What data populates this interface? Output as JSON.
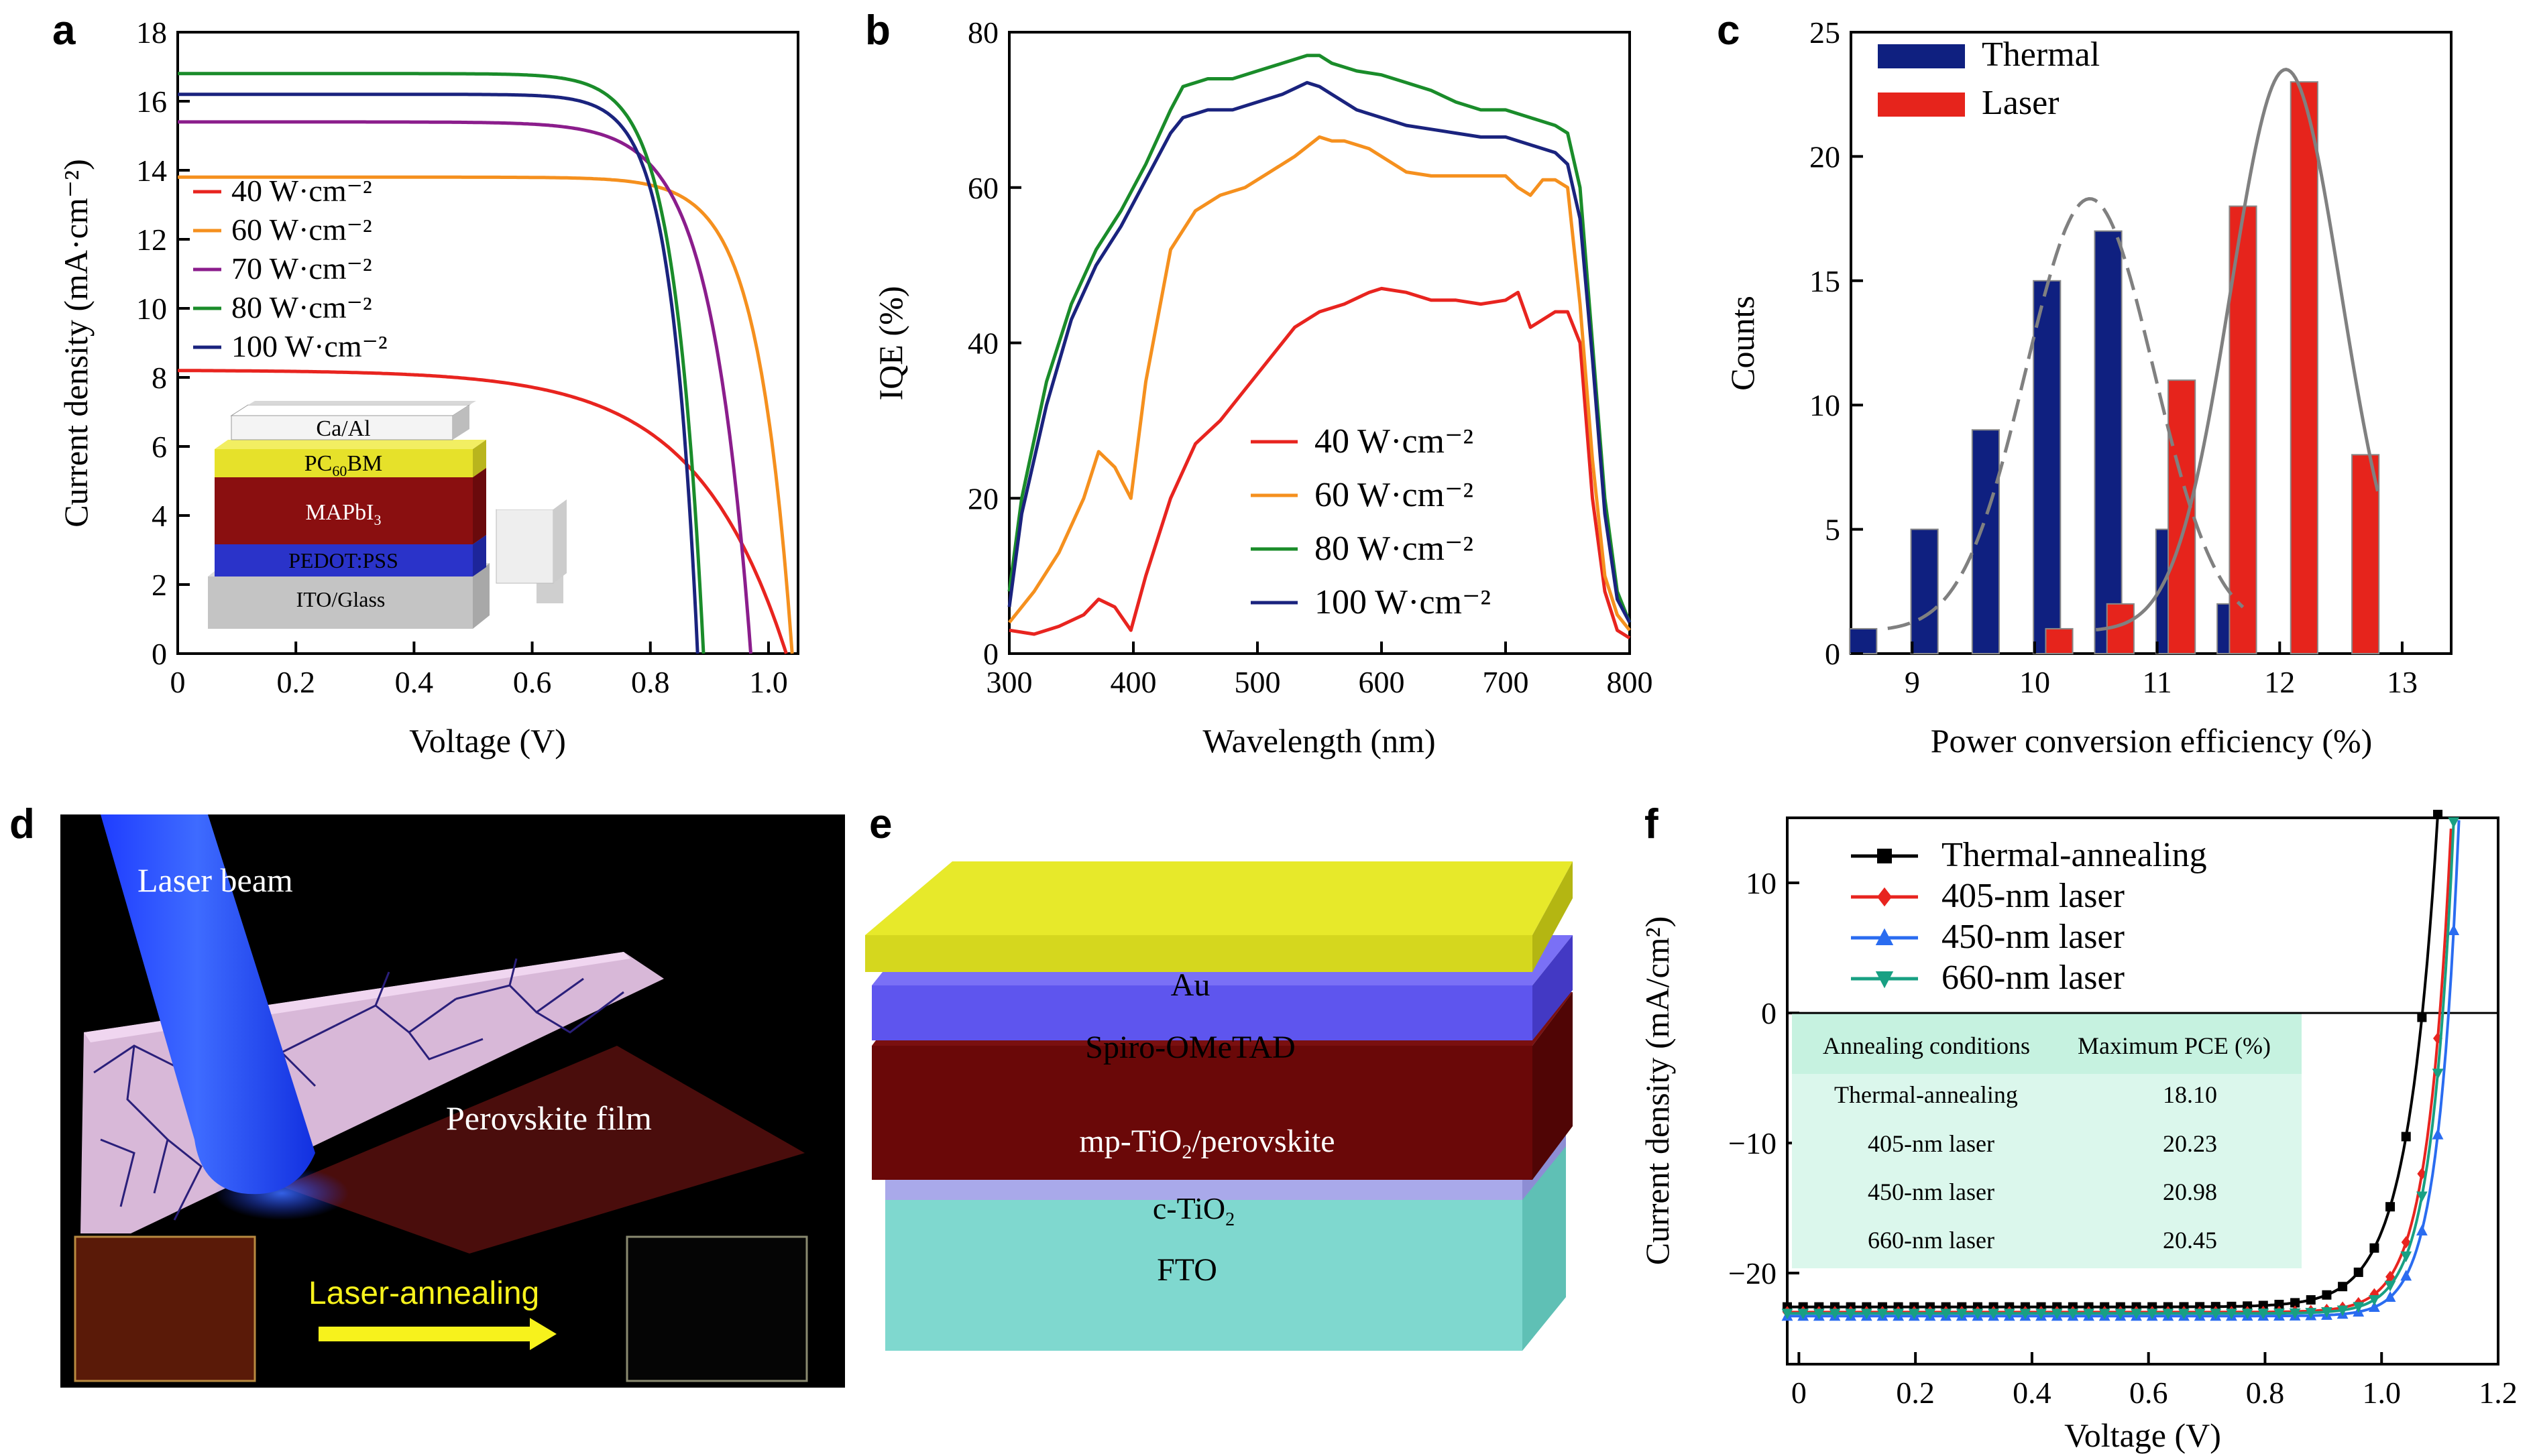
{
  "panels": [
    {
      "id": "a",
      "letter": "a"
    },
    {
      "id": "b",
      "letter": "b"
    },
    {
      "id": "c",
      "letter": "c"
    },
    {
      "id": "d",
      "letter": "d"
    },
    {
      "id": "e",
      "letter": "e"
    },
    {
      "id": "f",
      "letter": "f"
    }
  ],
  "colors": {
    "red": "#e8241f",
    "orange": "#f5901e",
    "purple": "#8b1d8c",
    "green": "#1a8c2a",
    "navy": "#1a237e",
    "black": "#000000",
    "blue_tri": "#2a6cf0",
    "teal": "#18a083",
    "hist_thermal": "#0f2080",
    "hist_laser": "#e6241c",
    "fit_curve": "#808080"
  },
  "panel_a_stack": {
    "layers": [
      "Ca/Al",
      "PC",
      "MAPbI",
      "PEDOT:PSS",
      "ITO/Glass"
    ],
    "pcbm_prefix": "PC",
    "pcbm_sub": "60",
    "pcbm_suffix": "BM",
    "mapbi_prefix": "MAPbI",
    "mapbi_sub": "3"
  },
  "panel_d": {
    "laser_beam": "Laser beam",
    "film": "Perovskite film",
    "annealing": "Laser-annealing"
  },
  "panel_e": {
    "au": "Au",
    "spiro": "Spiro-OMeTAD",
    "mp_prefix": "mp-TiO",
    "mp_sub": "2",
    "mp_suffix": "/perovskite",
    "c_prefix": "c-TiO",
    "c_sub": "2",
    "fto": "FTO"
  },
  "panel_f_table": {
    "headers": [
      "Annealing conditions",
      "Maximum PCE (%)"
    ],
    "rows": [
      [
        "Thermal-annealing",
        "18.10"
      ],
      [
        "405-nm laser",
        "20.23"
      ],
      [
        "450-nm laser",
        "20.98"
      ],
      [
        "660-nm laser",
        "20.45"
      ]
    ]
  },
  "chart_data": [
    {
      "panel": "a",
      "type": "line",
      "xlabel": "Voltage (V)",
      "ylabel": "Current density (mA·cm⁻²)",
      "xlim": [
        0,
        1.05
      ],
      "ylim": [
        0,
        18
      ],
      "xticks": [
        0,
        0.2,
        0.4,
        0.6,
        0.8,
        1.0
      ],
      "xtick_labels": [
        "0",
        "0.2",
        "0.4",
        "0.6",
        "0.8",
        "1.0"
      ],
      "yticks": [
        0,
        2,
        4,
        6,
        8,
        10,
        12,
        14,
        16,
        18
      ],
      "legend_position": "left",
      "series": [
        {
          "name": "40 W·cm⁻²",
          "color": "red",
          "jsc": 8.2,
          "voc": 1.03,
          "n": 3.4
        },
        {
          "name": "60 W·cm⁻²",
          "color": "orange",
          "jsc": 13.8,
          "voc": 1.04,
          "n": 1.3
        },
        {
          "name": "70 W·cm⁻²",
          "color": "purple",
          "jsc": 15.4,
          "voc": 0.97,
          "n": 1.5
        },
        {
          "name": "80 W·cm⁻²",
          "color": "green",
          "jsc": 16.8,
          "voc": 0.89,
          "n": 1.1
        },
        {
          "name": "100 W·cm⁻²",
          "color": "navy",
          "jsc": 16.2,
          "voc": 0.88,
          "n": 1.0
        }
      ]
    },
    {
      "panel": "b",
      "type": "line",
      "xlabel": "Wavelength (nm)",
      "ylabel": "IQE (%)",
      "xlim": [
        300,
        800
      ],
      "ylim": [
        0,
        80
      ],
      "xticks": [
        300,
        400,
        500,
        600,
        700,
        800
      ],
      "yticks": [
        0,
        20,
        40,
        60,
        80
      ],
      "legend_position": "bottom-center",
      "series": [
        {
          "name": "40 W·cm⁻²",
          "color": "red",
          "x": [
            300,
            320,
            340,
            360,
            372,
            385,
            398,
            410,
            430,
            450,
            470,
            490,
            510,
            530,
            550,
            570,
            590,
            600,
            620,
            640,
            660,
            680,
            700,
            710,
            720,
            730,
            740,
            750,
            760,
            770,
            780,
            790,
            800
          ],
          "y": [
            3,
            2.5,
            3.5,
            5,
            7,
            6,
            3,
            10,
            20,
            27,
            30,
            34,
            38,
            42,
            44,
            45,
            46.5,
            47,
            46.5,
            45.5,
            45.5,
            45,
            45.5,
            46.5,
            42,
            43,
            44,
            44,
            40,
            20,
            8,
            3,
            2
          ]
        },
        {
          "name": "60 W·cm⁻²",
          "color": "orange",
          "x": [
            300,
            320,
            340,
            360,
            372,
            385,
            398,
            410,
            430,
            450,
            470,
            490,
            510,
            530,
            550,
            560,
            570,
            590,
            600,
            620,
            640,
            660,
            680,
            700,
            710,
            720,
            730,
            740,
            750,
            760,
            770,
            780,
            790,
            800
          ],
          "y": [
            4,
            8,
            13,
            20,
            26,
            24,
            20,
            35,
            52,
            57,
            59,
            60,
            62,
            64,
            66.5,
            66,
            66,
            65,
            64,
            62,
            61.5,
            61.5,
            61.5,
            61.5,
            60,
            59,
            61,
            61,
            60,
            45,
            25,
            10,
            5,
            3
          ]
        },
        {
          "name": "80 W·cm⁻²",
          "color": "green",
          "x": [
            300,
            310,
            330,
            350,
            370,
            390,
            410,
            430,
            440,
            460,
            480,
            500,
            520,
            540,
            550,
            560,
            580,
            600,
            620,
            640,
            660,
            680,
            700,
            720,
            740,
            750,
            760,
            770,
            780,
            790,
            800
          ],
          "y": [
            8,
            20,
            35,
            45,
            52,
            57,
            63,
            70,
            73,
            74,
            74,
            75,
            76,
            77,
            77,
            76,
            75,
            74.5,
            73.5,
            72.5,
            71,
            70,
            70,
            69,
            68,
            67,
            60,
            40,
            20,
            8,
            4
          ]
        },
        {
          "name": "100 W·cm⁻²",
          "color": "navy",
          "x": [
            300,
            310,
            330,
            350,
            370,
            390,
            410,
            430,
            440,
            460,
            480,
            500,
            520,
            540,
            550,
            560,
            580,
            600,
            620,
            640,
            660,
            680,
            700,
            720,
            740,
            750,
            760,
            770,
            780,
            790,
            800
          ],
          "y": [
            6,
            18,
            32,
            43,
            50,
            55,
            61,
            67,
            69,
            70,
            70,
            71,
            72,
            73.5,
            73,
            72,
            70,
            69,
            68,
            67.5,
            67,
            66.5,
            66.5,
            65.5,
            64.5,
            63,
            56,
            38,
            18,
            7,
            4
          ]
        }
      ]
    },
    {
      "panel": "c",
      "type": "bar",
      "xlabel": "Power conversion efficiency (%)",
      "ylabel": "Counts",
      "xlim": [
        8.5,
        13.4
      ],
      "ylim": [
        0,
        25
      ],
      "xticks": [
        9,
        10,
        11,
        12,
        13
      ],
      "yticks": [
        0,
        5,
        10,
        15,
        20,
        25
      ],
      "legend_position": "top-left",
      "series": [
        {
          "name": "Thermal",
          "color": "hist_thermal",
          "x": [
            8.6,
            9.1,
            9.6,
            10.1,
            10.6,
            11.1,
            11.6
          ],
          "values": [
            1,
            5,
            9,
            15,
            17,
            5,
            2
          ]
        },
        {
          "name": "Laser",
          "color": "hist_laser",
          "x": [
            10.2,
            10.7,
            11.2,
            11.7,
            12.2,
            12.7
          ],
          "values": [
            1,
            2,
            11,
            18,
            23,
            8
          ]
        }
      ],
      "fits": [
        {
          "series": "Thermal",
          "amp": 17.4,
          "mu": 10.45,
          "sigma": 0.52,
          "from": 8.8,
          "to": 11.7,
          "dash": true
        },
        {
          "series": "Laser",
          "amp": 22.6,
          "mu": 12.05,
          "sigma": 0.45,
          "from": 10.5,
          "to": 12.8,
          "dash": false
        }
      ]
    },
    {
      "panel": "f",
      "type": "line",
      "xlabel": "Voltage (V)",
      "ylabel": "Current density (mA/cm²)",
      "xlim": [
        -0.02,
        1.2
      ],
      "ylim": [
        -27,
        15
      ],
      "xticks": [
        0,
        0.2,
        0.4,
        0.6,
        0.8,
        1.0,
        1.2
      ],
      "xtick_labels": [
        "0",
        "0.2",
        "0.4",
        "0.6",
        "0.8",
        "1.0",
        "1.2"
      ],
      "yticks": [
        -20,
        -10,
        0,
        10
      ],
      "ytick_labels": [
        "−20",
        "−10",
        "0",
        "10"
      ],
      "legend_position": "top-left",
      "series": [
        {
          "name": "Thermal-annealing",
          "color": "black",
          "marker": "square",
          "jsc": -22.6,
          "voc": 1.07,
          "n": 1.35
        },
        {
          "name": "405-nm laser",
          "color": "red",
          "marker": "diamond",
          "jsc": -23.0,
          "voc": 1.1,
          "n": 1.05
        },
        {
          "name": "450-nm laser",
          "color": "blue_tri",
          "marker": "triangle-up",
          "jsc": -23.3,
          "voc": 1.115,
          "n": 0.95
        },
        {
          "name": "660-nm laser",
          "color": "teal",
          "marker": "triangle-down",
          "jsc": -23.1,
          "voc": 1.105,
          "n": 1.0
        }
      ]
    }
  ]
}
